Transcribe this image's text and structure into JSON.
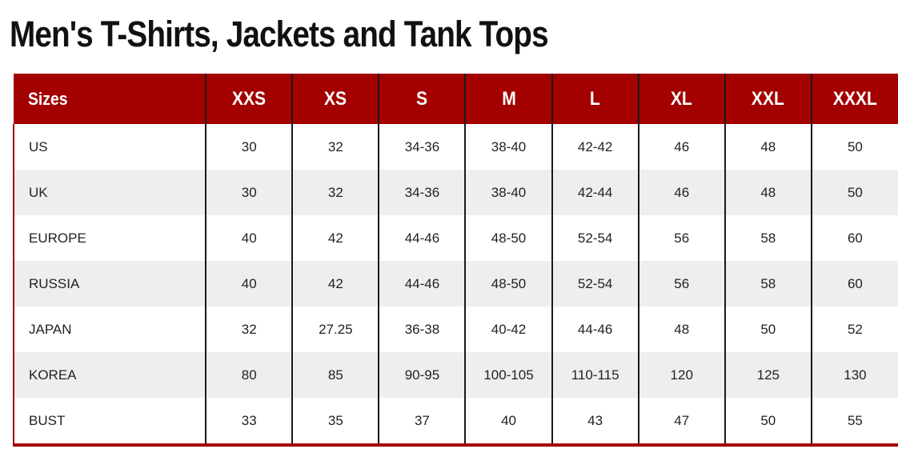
{
  "title": "Men's T-Shirts, Jackets and Tank Tops",
  "colors": {
    "header_background": "#a30000",
    "header_text": "#ffffff",
    "striped_row": "#eeeeee",
    "divider": "#1a1a1a"
  },
  "table": {
    "header": [
      "Sizes",
      "XXS",
      "XS",
      "S",
      "M",
      "L",
      "XL",
      "XXL",
      "XXXL"
    ],
    "rows": [
      [
        "US",
        "30",
        "32",
        "34-36",
        "38-40",
        "42-42",
        "46",
        "48",
        "50"
      ],
      [
        "UK",
        "30",
        "32",
        "34-36",
        "38-40",
        "42-44",
        "46",
        "48",
        "50"
      ],
      [
        "EUROPE",
        "40",
        "42",
        "44-46",
        "48-50",
        "52-54",
        "56",
        "58",
        "60"
      ],
      [
        "RUSSIA",
        "40",
        "42",
        "44-46",
        "48-50",
        "52-54",
        "56",
        "58",
        "60"
      ],
      [
        "JAPAN",
        "32",
        "27.25",
        "36-38",
        "40-42",
        "44-46",
        "48",
        "50",
        "52"
      ],
      [
        "KOREA",
        "80",
        "85",
        "90-95",
        "100-105",
        "110-115",
        "120",
        "125",
        "130"
      ],
      [
        "BUST",
        "33",
        "35",
        "37",
        "40",
        "43",
        "47",
        "50",
        "55"
      ]
    ]
  }
}
